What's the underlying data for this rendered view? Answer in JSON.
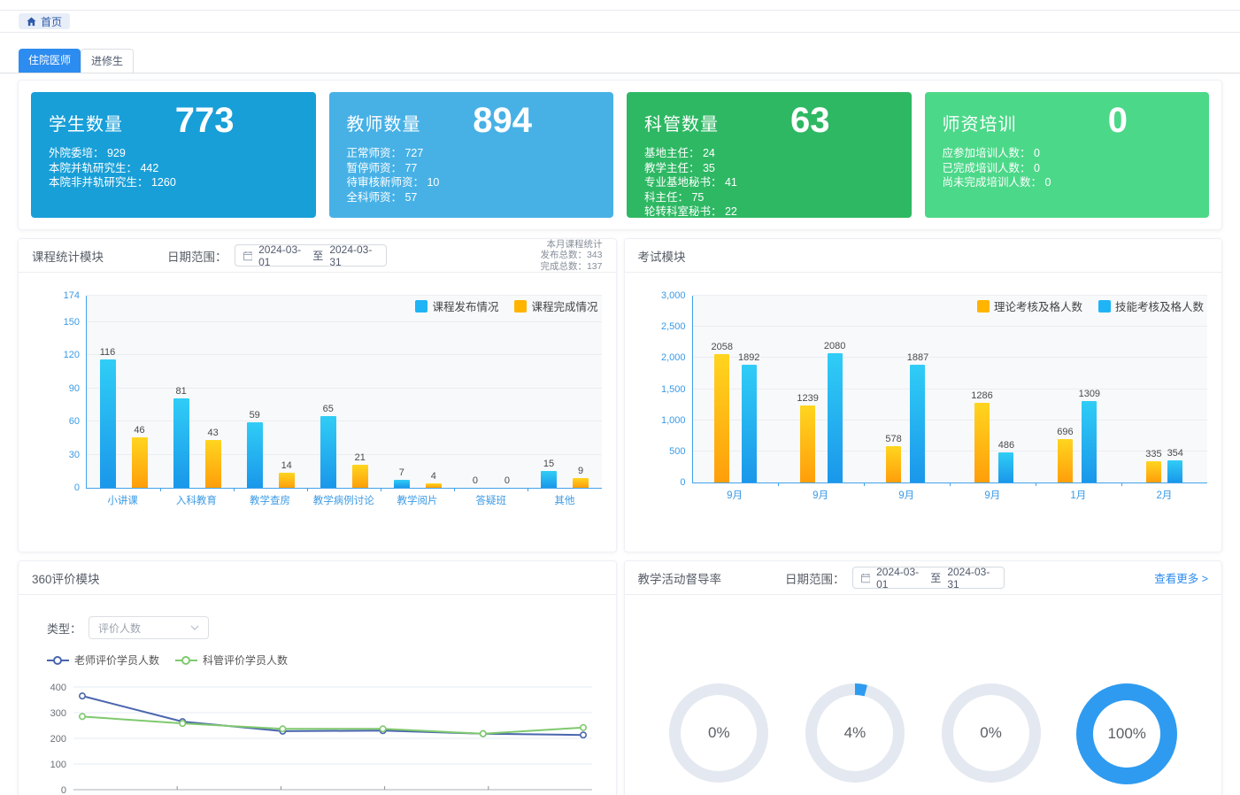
{
  "breadcrumb": {
    "home": "首页"
  },
  "tabs": [
    {
      "label": "住院医师",
      "active": true
    },
    {
      "label": "进修生",
      "active": false
    }
  ],
  "stat_cards": [
    {
      "title": "学生数量",
      "value": "773",
      "color": "#189fd8",
      "items": [
        {
          "label": "外院委培",
          "value": "929"
        },
        {
          "label": "本院并轨研究生",
          "value": "442"
        },
        {
          "label": "本院非并轨研究生",
          "value": "1260"
        }
      ]
    },
    {
      "title": "教师数量",
      "value": "894",
      "color": "#47b1e6",
      "items": [
        {
          "label": "正常师资",
          "value": "727"
        },
        {
          "label": "暂停师资",
          "value": "77"
        },
        {
          "label": "待审核新师资",
          "value": "10"
        },
        {
          "label": "全科师资",
          "value": "57"
        }
      ]
    },
    {
      "title": "科管数量",
      "value": "63",
      "color": "#2eb863",
      "items": [
        {
          "label": "基地主任",
          "value": "24"
        },
        {
          "label": "教学主任",
          "value": "35"
        },
        {
          "label": "专业基地秘书",
          "value": "41"
        },
        {
          "label": "科主任",
          "value": "75"
        },
        {
          "label": "轮转科室秘书",
          "value": "22"
        }
      ]
    },
    {
      "title": "师资培训",
      "value": "0",
      "color": "#4cd889",
      "items": [
        {
          "label": "应参加培训人数",
          "value": "0"
        },
        {
          "label": "已完成培训人数",
          "value": "0"
        },
        {
          "label": "尚未完成培训人数",
          "value": "0"
        }
      ]
    }
  ],
  "modules": {
    "course": {
      "title": "课程统计模块",
      "date_label": "日期范围：",
      "date_start": "2024-03-01",
      "date_to": "至",
      "date_end": "2024-03-31",
      "summary": [
        "本月课程统计",
        "发布总数：343",
        "完成总数：137"
      ]
    },
    "exam": {
      "title": "考试模块"
    },
    "eval360": {
      "title": "360评价模块",
      "type_label": "类型：",
      "type_value": "评价人数"
    },
    "supervision": {
      "title": "教学活动督导率",
      "date_label": "日期范围：",
      "date_start": "2024-03-01",
      "date_to": "至",
      "date_end": "2024-03-31",
      "more_label": "查看更多 >"
    }
  },
  "colors": {
    "primary_blue": "#2d8cf0",
    "axis_blue": "#41a3ea",
    "card_colors": [
      "#189fd8",
      "#47b1e6",
      "#2eb863",
      "#4cd889"
    ],
    "donut_fill": "#2e9bf0",
    "donut_track": "#e4e8f0"
  },
  "chart_data": [
    {
      "id": "course_stats",
      "type": "bar",
      "title": "课程统计模块",
      "categories": [
        "小讲课",
        "入科教育",
        "教学查房",
        "教学病例讨论",
        "教学阅片",
        "答疑班",
        "其他"
      ],
      "series": [
        {
          "name": "课程发布情况",
          "color": "#1fb4f5",
          "gradient": [
            "#30cdf6",
            "#1a97ea"
          ],
          "values": [
            116,
            81,
            59,
            65,
            7,
            0,
            15
          ]
        },
        {
          "name": "课程完成情况",
          "color": "#ffb400",
          "gradient": [
            "#ffd51f",
            "#ff9e0a"
          ],
          "values": [
            46,
            43,
            14,
            21,
            4,
            0,
            9
          ]
        }
      ],
      "ylim": [
        0,
        174
      ],
      "yticks": [
        0,
        30,
        60,
        90,
        120,
        150,
        174
      ],
      "ytick_labels": [
        "0",
        "30",
        "60",
        "90",
        "120",
        "150",
        "174"
      ],
      "legend_position": "top-right",
      "grid": true
    },
    {
      "id": "exam",
      "type": "bar",
      "title": "考试模块",
      "categories": [
        "9月",
        "9月",
        "9月",
        "9月",
        "1月",
        "2月"
      ],
      "series": [
        {
          "name": "理论考核及格人数",
          "color": "#ffb400",
          "gradient": [
            "#ffd51f",
            "#ff9e0a"
          ],
          "values": [
            2058,
            1239,
            578,
            1286,
            696,
            335
          ]
        },
        {
          "name": "技能考核及格人数",
          "color": "#1fb4f5",
          "gradient": [
            "#30cdf6",
            "#1a97ea"
          ],
          "values": [
            1892,
            2080,
            1887,
            486,
            1309,
            354
          ]
        }
      ],
      "ylim": [
        0,
        3000
      ],
      "yticks": [
        0,
        500,
        1000,
        1500,
        2000,
        2500,
        3000
      ],
      "ytick_labels": [
        "0",
        "500",
        "1,000",
        "1,500",
        "2,000",
        "2,500",
        "3,000"
      ],
      "legend_position": "top-right",
      "grid": true
    },
    {
      "id": "eval_360",
      "type": "line",
      "title": "360评价模块",
      "x_count": 6,
      "series": [
        {
          "name": "老师评价学员人数",
          "color": "#4a65ae",
          "values": [
            365,
            265,
            228,
            230,
            218,
            213
          ]
        },
        {
          "name": "科管评价学员人数",
          "color": "#7fc96e",
          "values": [
            285,
            258,
            237,
            237,
            218,
            242
          ]
        }
      ],
      "ylim": [
        0,
        400
      ],
      "yticks": [
        0,
        100,
        200,
        300,
        400
      ],
      "grid": true
    },
    {
      "id": "supervision_rate",
      "type": "donut",
      "title": "教学活动督导率",
      "values": [
        {
          "percent": 0,
          "label": "0%"
        },
        {
          "percent": 4,
          "label": "4%"
        },
        {
          "percent": 0,
          "label": "0%"
        },
        {
          "percent": 100,
          "label": "100%"
        }
      ],
      "track_color": "#e4e8f0",
      "fill_color": "#2e9bf0"
    }
  ]
}
